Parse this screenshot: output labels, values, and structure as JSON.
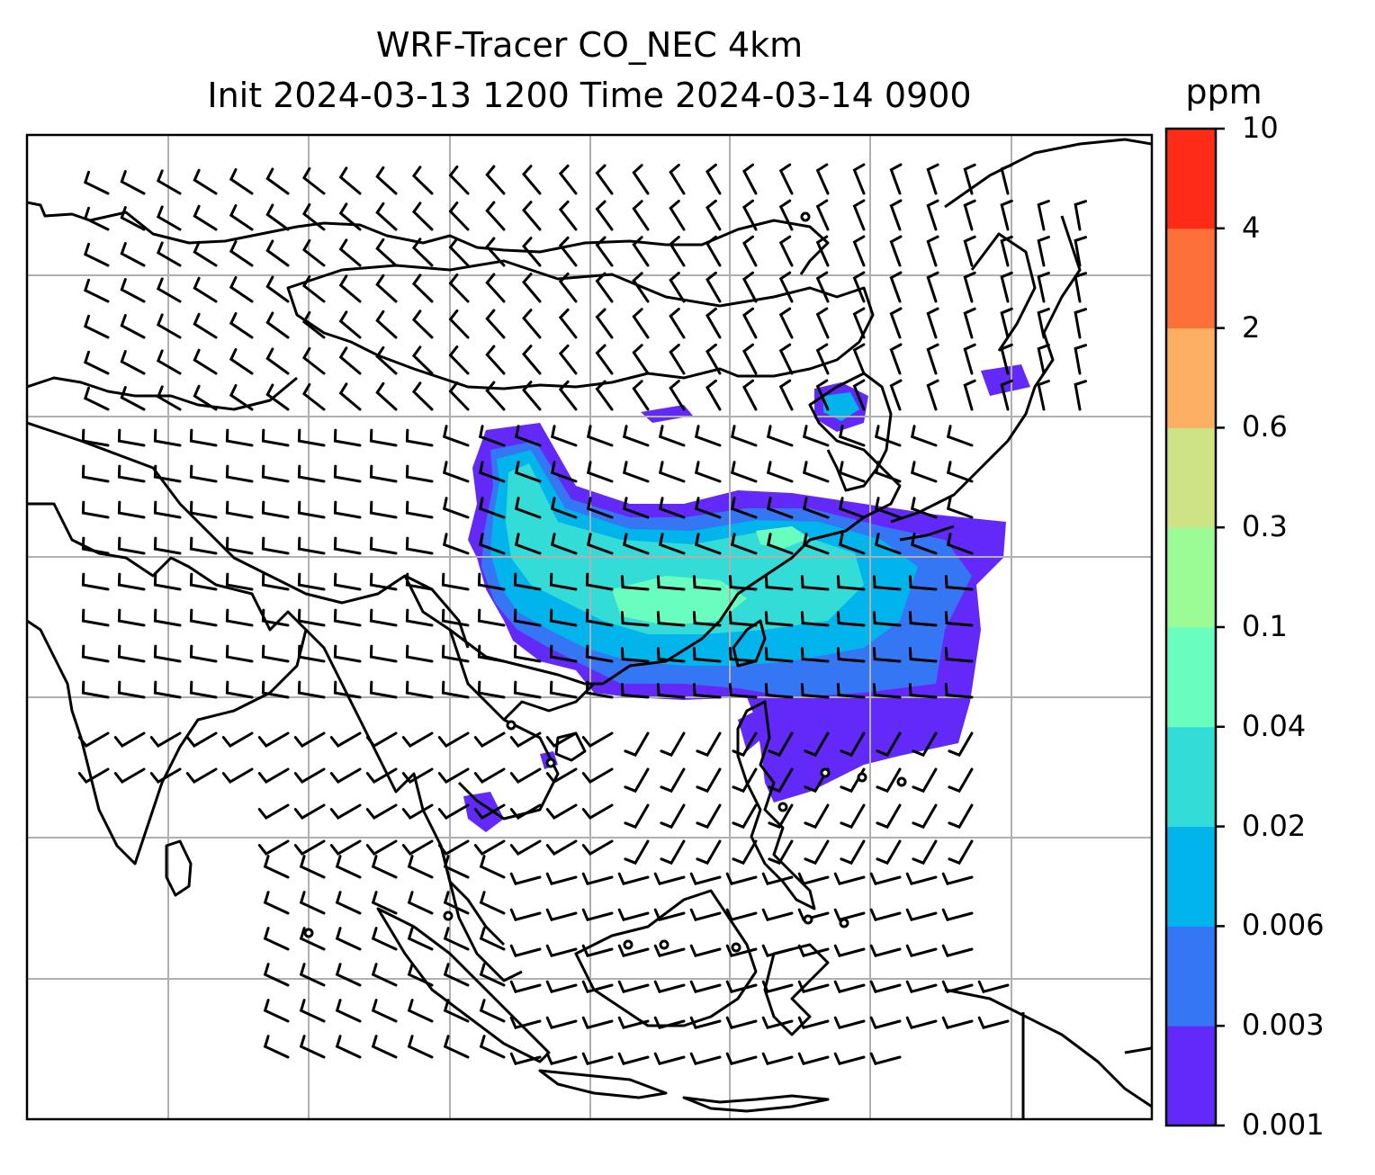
{
  "title_line1": "WRF-Tracer CO_NEC 4km",
  "title_line2": "Init 2024-03-13 1200 Time 2024-03-14 0900",
  "colorbar": {
    "unit": "ppm",
    "levels": [
      "0.001",
      "0.003",
      "0.006",
      "0.02",
      "0.04",
      "0.1",
      "0.3",
      "0.6",
      "2",
      "4",
      "10"
    ],
    "colors": [
      "#6329f9",
      "#3476f3",
      "#02b4ec",
      "#33dcd6",
      "#6afdc0",
      "#9bfc95",
      "#cee385",
      "#fdb064",
      "#fe7039",
      "#fe2b17"
    ]
  },
  "map": {
    "region": "East and Southeast Asia",
    "gridline_color": "#b0b0b0",
    "coastline_color": "#000000",
    "barb_color": "#000000"
  }
}
